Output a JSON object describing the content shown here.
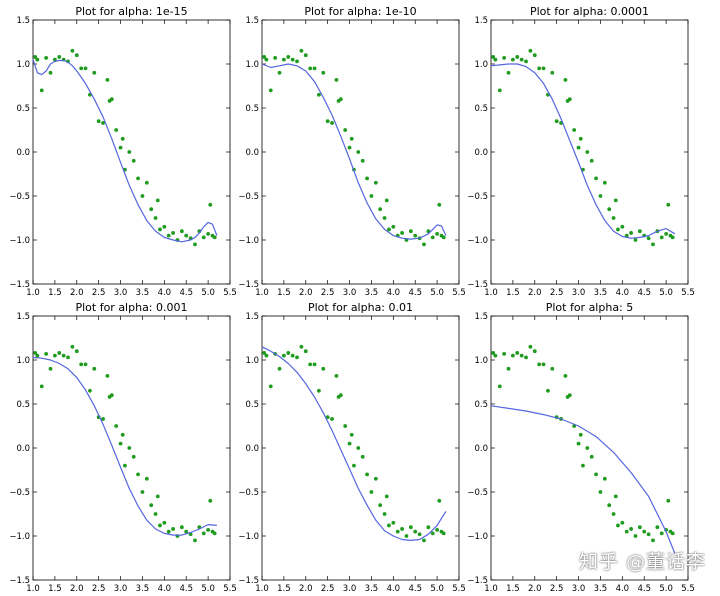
{
  "chart_data": [
    {
      "type": "scatter+line",
      "title": "Plot for alpha: 1e-15",
      "xlim": [
        1.0,
        5.5
      ],
      "ylim": [
        -1.5,
        1.5
      ],
      "xticks": [
        "1.0",
        "1.5",
        "2.0",
        "2.5",
        "3.0",
        "3.5",
        "4.0",
        "4.5",
        "5.0",
        "5.5"
      ],
      "yticks": [
        "1.5",
        "1.0",
        "0.5",
        "0.0",
        "−0.5",
        "−1.0",
        "−1.5"
      ],
      "fit": {
        "x": [
          1.0,
          1.1,
          1.2,
          1.3,
          1.4,
          1.5,
          1.6,
          1.7,
          1.8,
          1.9,
          2.0,
          2.2,
          2.4,
          2.6,
          2.8,
          3.0,
          3.2,
          3.4,
          3.6,
          3.8,
          4.0,
          4.2,
          4.4,
          4.6,
          4.7,
          4.8,
          4.9,
          5.0,
          5.1,
          5.2
        ],
        "y": [
          1.05,
          0.9,
          0.88,
          0.92,
          1.0,
          1.03,
          1.04,
          1.04,
          1.02,
          0.98,
          0.92,
          0.78,
          0.6,
          0.4,
          0.15,
          -0.12,
          -0.38,
          -0.6,
          -0.78,
          -0.9,
          -0.97,
          -1.0,
          -1.02,
          -1.0,
          -0.97,
          -0.92,
          -0.85,
          -0.8,
          -0.82,
          -0.95
        ]
      }
    },
    {
      "type": "scatter+line",
      "title": "Plot for alpha: 1e-10",
      "xlim": [
        1.0,
        5.5
      ],
      "ylim": [
        -1.5,
        1.5
      ],
      "xticks": [
        "1.0",
        "1.5",
        "2.0",
        "2.5",
        "3.0",
        "3.5",
        "4.0",
        "4.5",
        "5.0",
        "5.5"
      ],
      "yticks": [
        "1.5",
        "1.0",
        "0.5",
        "0.0",
        "−0.5",
        "−1.0",
        "−1.5"
      ],
      "fit": {
        "x": [
          1.0,
          1.2,
          1.4,
          1.6,
          1.8,
          2.0,
          2.2,
          2.4,
          2.6,
          2.8,
          3.0,
          3.2,
          3.4,
          3.6,
          3.8,
          4.0,
          4.2,
          4.4,
          4.6,
          4.8,
          4.9,
          5.0,
          5.1,
          5.2
        ],
        "y": [
          1.0,
          0.96,
          0.98,
          1.0,
          0.98,
          0.92,
          0.8,
          0.62,
          0.42,
          0.18,
          -0.08,
          -0.35,
          -0.58,
          -0.76,
          -0.88,
          -0.95,
          -0.98,
          -0.99,
          -0.98,
          -0.93,
          -0.88,
          -0.83,
          -0.84,
          -0.95
        ]
      }
    },
    {
      "type": "scatter+line",
      "title": "Plot for alpha: 0.0001",
      "xlim": [
        1.0,
        5.5
      ],
      "ylim": [
        -1.5,
        1.5
      ],
      "xticks": [
        "1.0",
        "1.5",
        "2.0",
        "2.5",
        "3.0",
        "3.5",
        "4.0",
        "4.5",
        "5.0",
        "5.5"
      ],
      "yticks": [
        "1.5",
        "1.0",
        "0.5",
        "0.0",
        "−0.5",
        "−1.0",
        "−1.5"
      ],
      "fit": {
        "x": [
          1.0,
          1.2,
          1.4,
          1.6,
          1.8,
          2.0,
          2.2,
          2.4,
          2.6,
          2.8,
          3.0,
          3.2,
          3.4,
          3.6,
          3.8,
          4.0,
          4.2,
          4.4,
          4.6,
          4.8,
          5.0,
          5.2
        ],
        "y": [
          0.98,
          0.99,
          1.0,
          1.0,
          0.97,
          0.9,
          0.78,
          0.6,
          0.38,
          0.13,
          -0.12,
          -0.38,
          -0.6,
          -0.78,
          -0.9,
          -0.96,
          -0.98,
          -0.97,
          -0.95,
          -0.9,
          -0.87,
          -0.93
        ]
      }
    },
    {
      "type": "scatter+line",
      "title": "Plot for alpha: 0.001",
      "xlim": [
        1.0,
        5.5
      ],
      "ylim": [
        -1.5,
        1.5
      ],
      "xticks": [
        "1.0",
        "1.5",
        "2.0",
        "2.5",
        "3.0",
        "3.5",
        "4.0",
        "4.5",
        "5.0",
        "5.5"
      ],
      "yticks": [
        "1.5",
        "1.0",
        "0.5",
        "0.0",
        "−0.5",
        "−1.0",
        "−1.5"
      ],
      "fit": {
        "x": [
          1.0,
          1.2,
          1.4,
          1.6,
          1.8,
          2.0,
          2.2,
          2.4,
          2.6,
          2.8,
          3.0,
          3.2,
          3.4,
          3.6,
          3.8,
          4.0,
          4.2,
          4.4,
          4.6,
          4.8,
          5.0,
          5.2
        ],
        "y": [
          1.03,
          1.02,
          1.0,
          0.96,
          0.9,
          0.8,
          0.66,
          0.48,
          0.27,
          0.03,
          -0.22,
          -0.46,
          -0.66,
          -0.82,
          -0.92,
          -0.97,
          -0.99,
          -0.99,
          -0.96,
          -0.92,
          -0.87,
          -0.88
        ]
      }
    },
    {
      "type": "scatter+line",
      "title": "Plot for alpha: 0.01",
      "xlim": [
        1.0,
        5.5
      ],
      "ylim": [
        -1.5,
        1.5
      ],
      "xticks": [
        "1.0",
        "1.5",
        "2.0",
        "2.5",
        "3.0",
        "3.5",
        "4.0",
        "4.5",
        "5.0",
        "5.5"
      ],
      "yticks": [
        "1.5",
        "1.0",
        "0.5",
        "0.0",
        "−0.5",
        "−1.0",
        "−1.5"
      ],
      "fit": {
        "x": [
          1.0,
          1.2,
          1.4,
          1.6,
          1.8,
          2.0,
          2.2,
          2.4,
          2.6,
          2.8,
          3.0,
          3.2,
          3.4,
          3.6,
          3.8,
          4.0,
          4.2,
          4.4,
          4.6,
          4.8,
          5.0,
          5.2
        ],
        "y": [
          1.15,
          1.1,
          1.04,
          0.96,
          0.86,
          0.73,
          0.58,
          0.4,
          0.2,
          -0.02,
          -0.24,
          -0.46,
          -0.65,
          -0.82,
          -0.94,
          -1.0,
          -1.04,
          -1.05,
          -1.04,
          -0.98,
          -0.88,
          -0.72
        ]
      }
    },
    {
      "type": "scatter+line",
      "title": "Plot for alpha: 5",
      "xlim": [
        1.0,
        5.5
      ],
      "ylim": [
        -1.5,
        1.5
      ],
      "xticks": [
        "1.0",
        "1.5",
        "2.0",
        "2.5",
        "3.0",
        "3.5",
        "4.0",
        "4.5",
        "5.0",
        "5.5"
      ],
      "yticks": [
        "1.5",
        "1.0",
        "0.5",
        "0.0",
        "−0.5",
        "−1.0",
        "−1.5"
      ],
      "fit": {
        "x": [
          1.0,
          1.4,
          1.8,
          2.2,
          2.6,
          3.0,
          3.4,
          3.8,
          4.2,
          4.6,
          5.0,
          5.2
        ],
        "y": [
          0.48,
          0.45,
          0.42,
          0.38,
          0.33,
          0.25,
          0.13,
          -0.05,
          -0.28,
          -0.55,
          -0.95,
          -1.2
        ]
      }
    }
  ],
  "observations": {
    "x": [
      1.05,
      1.1,
      1.2,
      1.3,
      1.4,
      1.5,
      1.6,
      1.7,
      1.8,
      1.9,
      2.0,
      2.1,
      2.2,
      2.3,
      2.4,
      2.5,
      2.6,
      2.7,
      2.75,
      2.8,
      2.9,
      3.0,
      3.05,
      3.1,
      3.2,
      3.3,
      3.4,
      3.5,
      3.6,
      3.7,
      3.8,
      3.85,
      3.9,
      4.0,
      4.1,
      4.2,
      4.3,
      4.4,
      4.5,
      4.6,
      4.7,
      4.8,
      4.9,
      5.0,
      5.05,
      5.1,
      5.15
    ],
    "y": [
      1.08,
      1.05,
      0.7,
      1.07,
      0.9,
      1.05,
      1.08,
      1.05,
      1.03,
      1.15,
      1.1,
      0.95,
      0.95,
      0.65,
      0.9,
      0.35,
      0.33,
      0.82,
      0.58,
      0.6,
      0.25,
      0.05,
      0.15,
      -0.2,
      0.0,
      -0.1,
      -0.3,
      -0.5,
      -0.35,
      -0.65,
      -0.75,
      -0.55,
      -0.88,
      -0.85,
      -0.95,
      -0.92,
      -1.0,
      -0.9,
      -0.95,
      -0.98,
      -1.05,
      -0.9,
      -0.97,
      -0.93,
      -0.6,
      -0.95,
      -0.97
    ]
  },
  "colors": {
    "points": "#1f9b1f",
    "fit": "#5566e0",
    "axes": "#000000",
    "text": "#000000"
  },
  "watermark": "知乎 @董话李"
}
